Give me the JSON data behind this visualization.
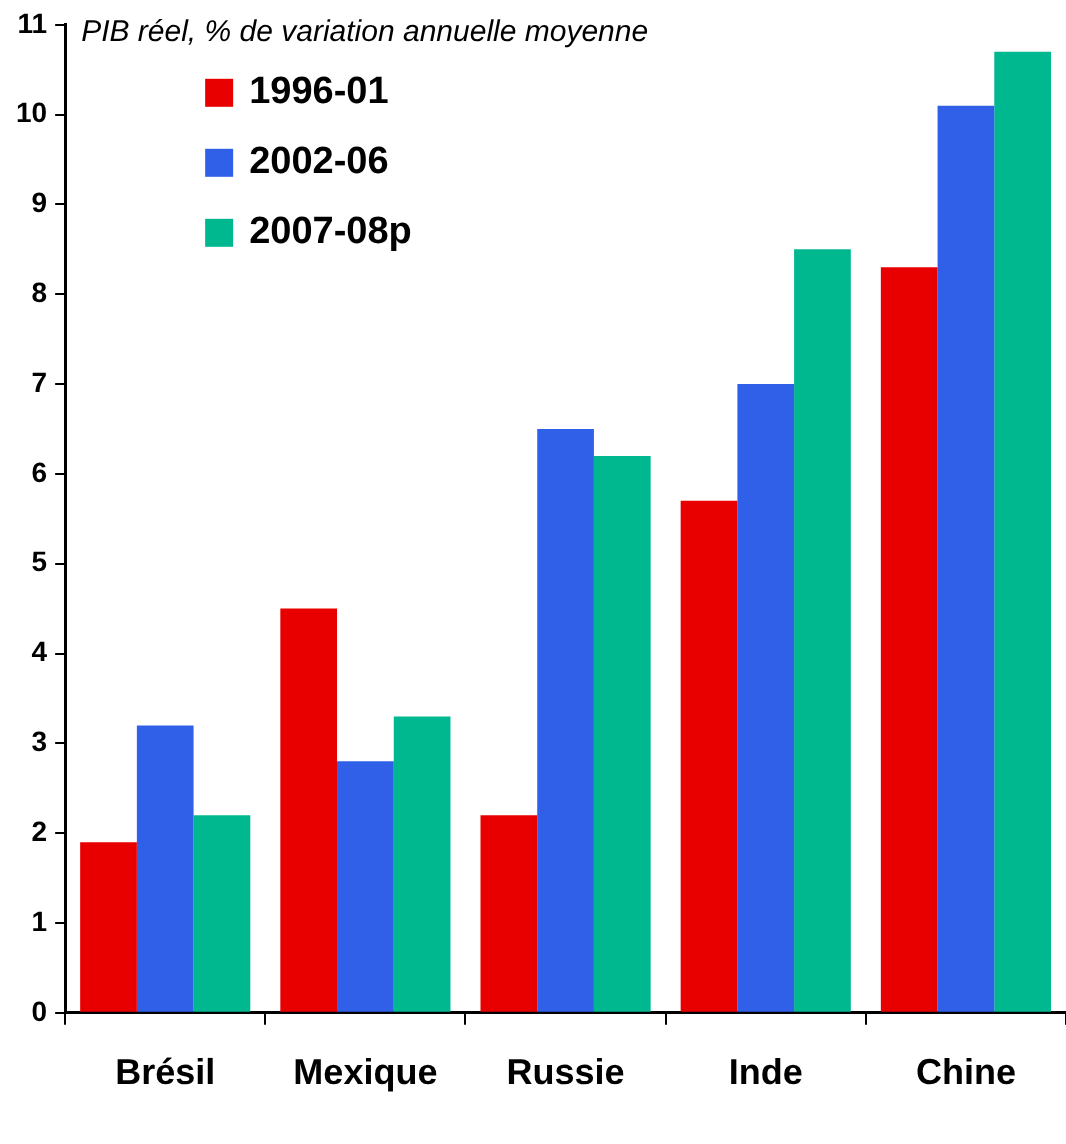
{
  "chart_data": {
    "type": "bar",
    "title": "PIB réel, % de variation annuelle moyenne",
    "categories": [
      "Brésil",
      "Mexique",
      "Russie",
      "Inde",
      "Chine"
    ],
    "series": [
      {
        "name": "1996-01",
        "color": "#e80000",
        "values": [
          1.9,
          4.5,
          2.2,
          5.7,
          8.3
        ]
      },
      {
        "name": "2002-06",
        "color": "#3060e8",
        "values": [
          3.2,
          2.8,
          6.5,
          7.0,
          10.1
        ]
      },
      {
        "name": "2007-08p",
        "color": "#00b890",
        "values": [
          2.2,
          3.3,
          6.2,
          8.5,
          10.7
        ]
      }
    ],
    "ylim": [
      0,
      11
    ],
    "yticks": [
      0,
      1,
      2,
      3,
      4,
      5,
      6,
      7,
      8,
      9,
      10,
      11
    ],
    "grid": false,
    "legend": "top left"
  }
}
